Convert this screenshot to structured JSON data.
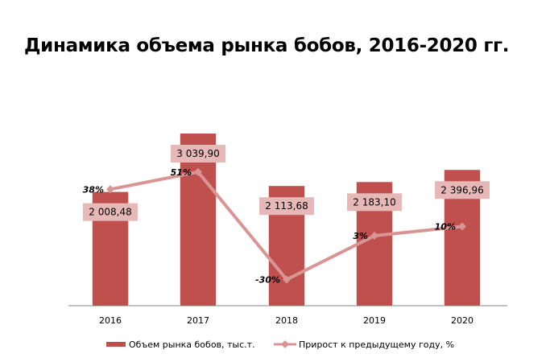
{
  "chart_data": {
    "type": "bar+line",
    "title": "Динамика объема рынка бобов, 2016-2020 гг.",
    "categories": [
      "2016",
      "2017",
      "2018",
      "2019",
      "2020"
    ],
    "series": [
      {
        "name": "Объем рынка бобов, тыс.т.",
        "type": "bar",
        "values": [
          2008.48,
          3039.9,
          2113.68,
          2183.1,
          2396.96
        ],
        "labels": [
          "2 008,48",
          "3 039,90",
          "2 113,68",
          "2 183,10",
          "2 396,96"
        ],
        "color": "#C0504D"
      },
      {
        "name": "Прирост к предыдущему году, %",
        "type": "line",
        "values": [
          38,
          51,
          -30,
          3,
          10
        ],
        "labels": [
          "38%",
          "51%",
          "-30%",
          "3%",
          "10%"
        ],
        "color": "#D99594"
      }
    ],
    "legend": "bottom",
    "grid": false
  }
}
